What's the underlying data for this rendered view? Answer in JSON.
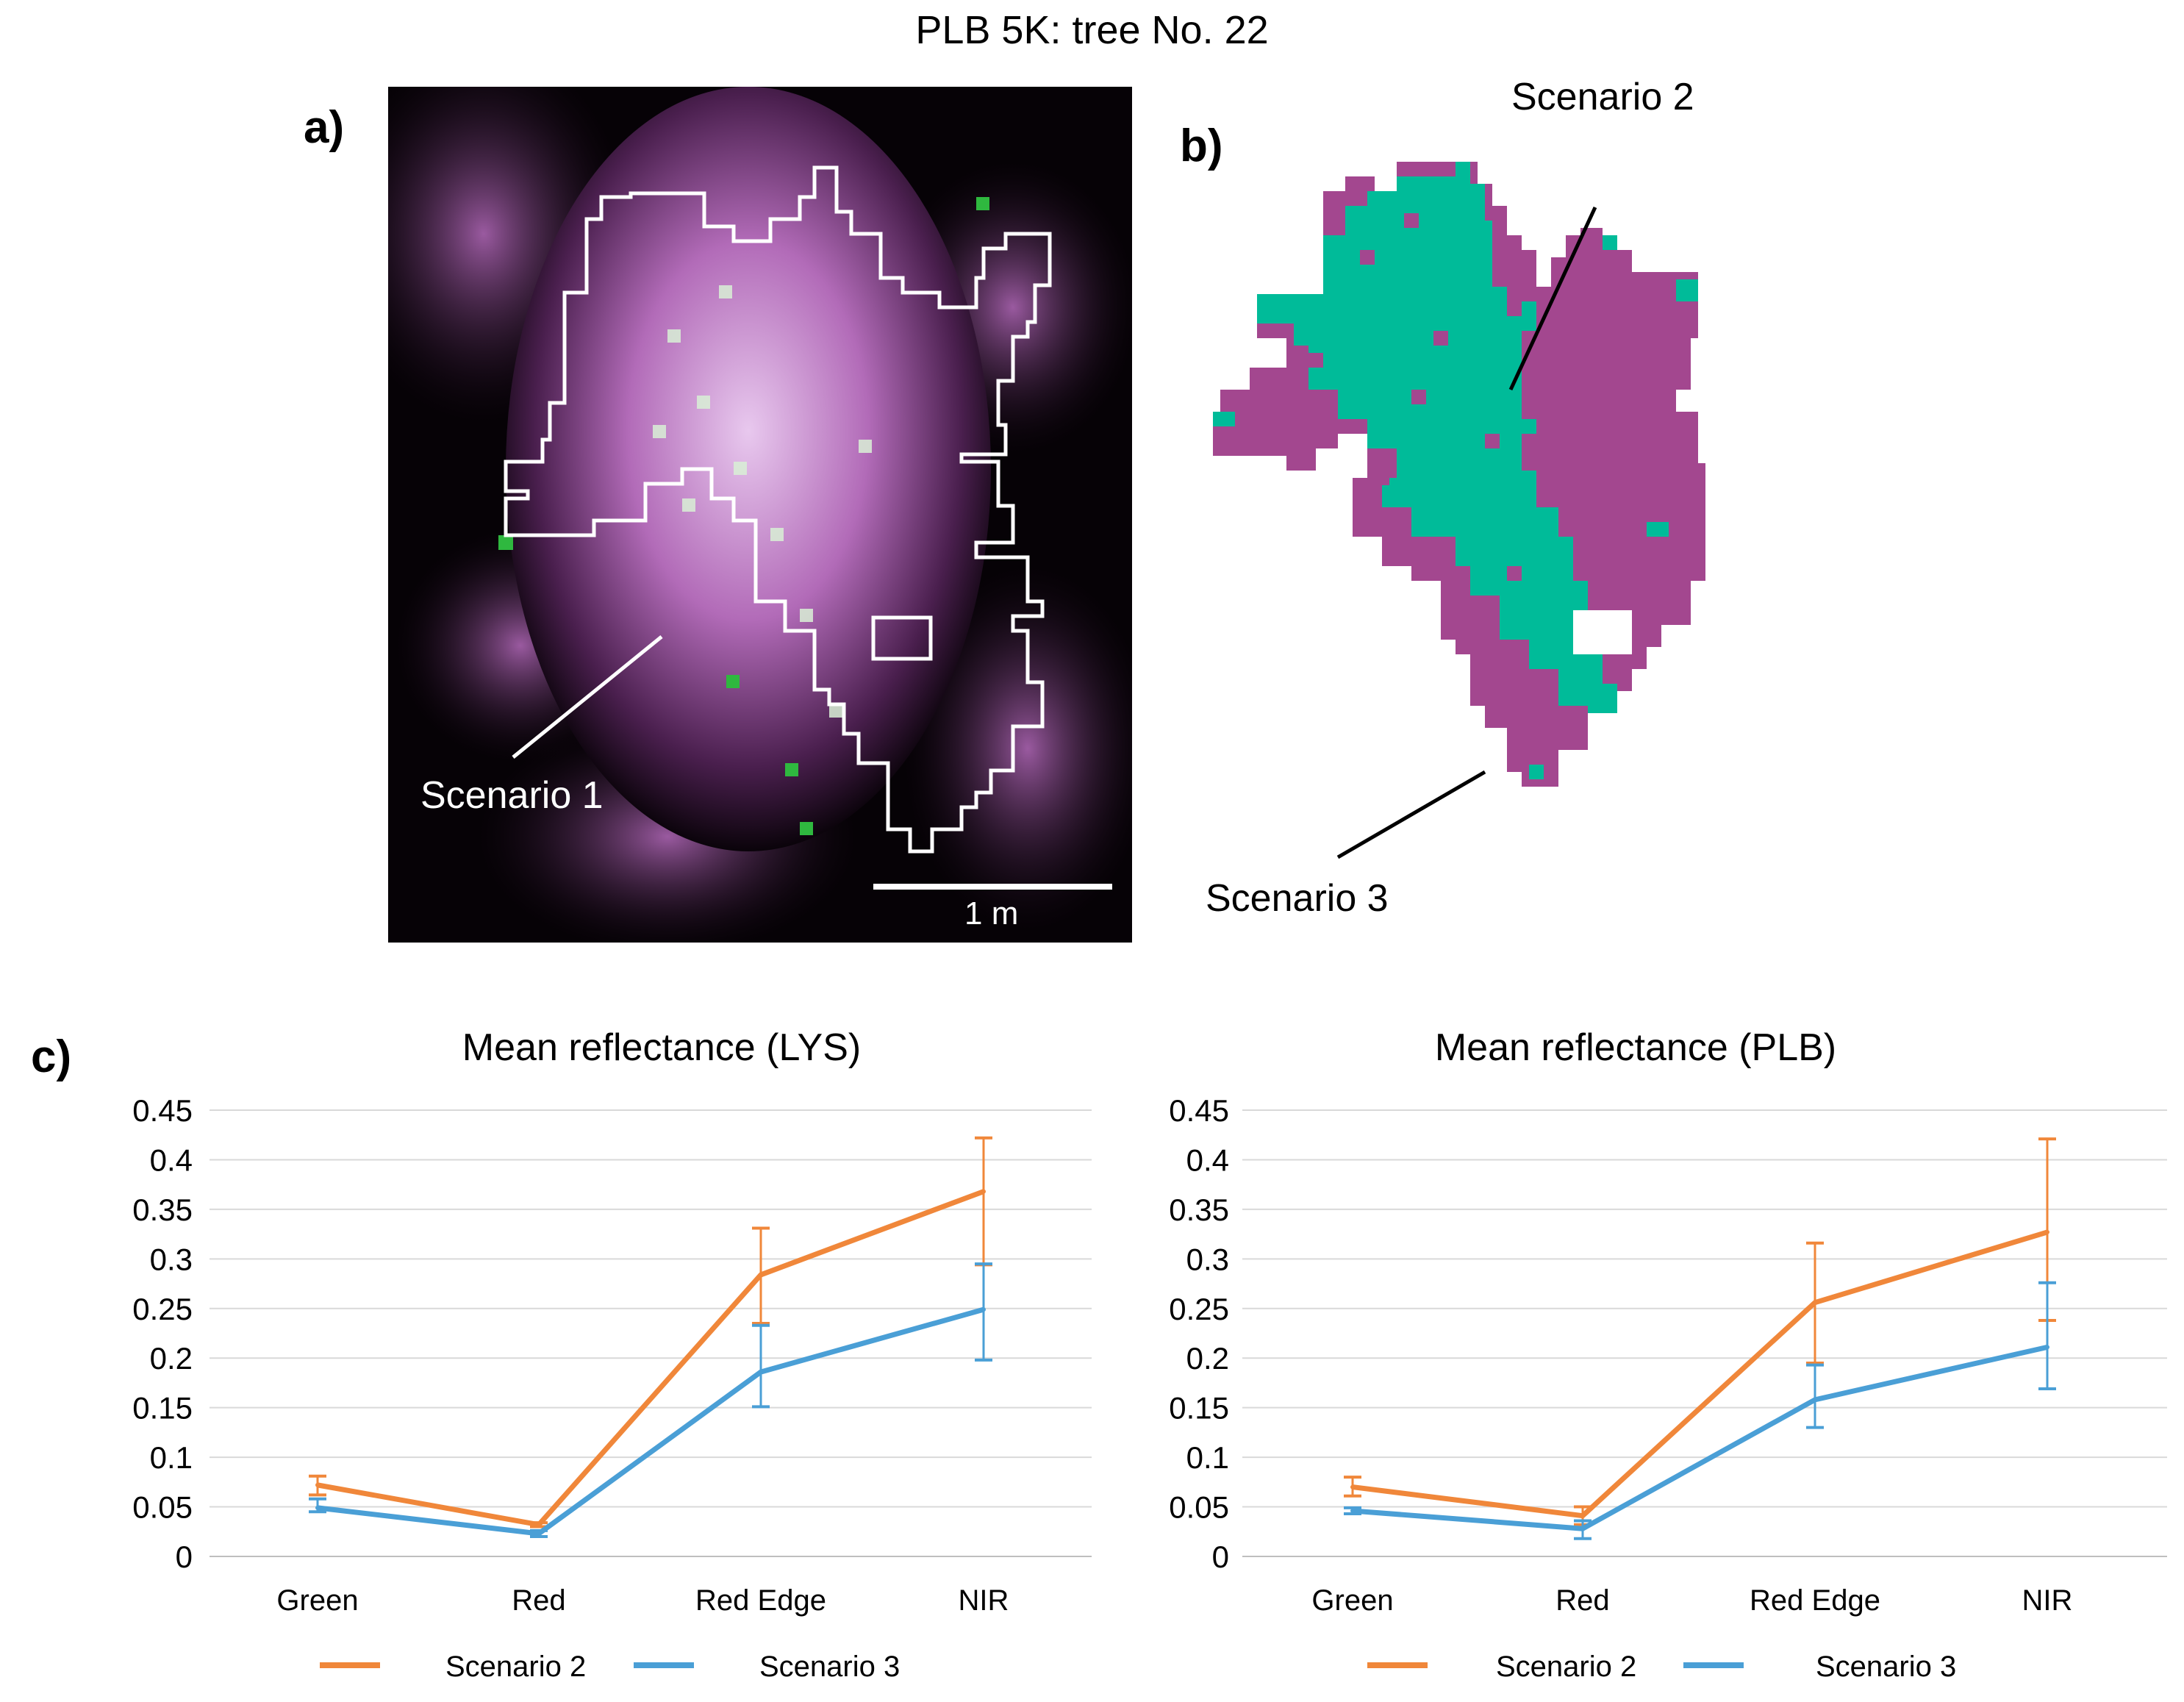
{
  "figure_title": "PLB 5K: tree No. 22",
  "panels": {
    "a_label": "a)",
    "b_label": "b)",
    "c_label": "c)"
  },
  "image_a": {
    "callout": "Scenario 1",
    "scale_bar_label": "1 m"
  },
  "image_b": {
    "callout_top": "Scenario 2",
    "callout_bottom": "Scenario 3",
    "colors": {
      "scenario2": "#00bb99",
      "scenario3": "#a3478f"
    }
  },
  "chart_data": [
    {
      "type": "line",
      "title": "Mean reflectance (LYS)",
      "categories": [
        "Green",
        "Red",
        "Red Edge",
        "NIR"
      ],
      "ylim": [
        0,
        0.45
      ],
      "yticks": [
        "0",
        "0.05",
        "0.1",
        "0.15",
        "0.2",
        "0.25",
        "0.3",
        "0.35",
        "0.4",
        "0.45"
      ],
      "grid": true,
      "legend": "bottom",
      "series": [
        {
          "name": "Scenario 2",
          "color": "#f0873a",
          "values": [
            0.072,
            0.032,
            0.284,
            0.368
          ],
          "err_upper": [
            0.081,
            0.034,
            0.331,
            0.422
          ],
          "err_lower": [
            0.062,
            0.03,
            0.235,
            0.294
          ]
        },
        {
          "name": "Scenario 3",
          "color": "#4a9fd6",
          "values": [
            0.049,
            0.023,
            0.186,
            0.249
          ],
          "err_upper": [
            0.058,
            0.026,
            0.233,
            0.295
          ],
          "err_lower": [
            0.045,
            0.02,
            0.151,
            0.198
          ]
        }
      ]
    },
    {
      "type": "line",
      "title": "Mean reflectance (PLB)",
      "categories": [
        "Green",
        "Red",
        "Red Edge",
        "NIR"
      ],
      "ylim": [
        0,
        0.45
      ],
      "yticks": [
        "0",
        "0.05",
        "0.1",
        "0.15",
        "0.2",
        "0.25",
        "0.3",
        "0.35",
        "0.4",
        "0.45"
      ],
      "grid": true,
      "legend": "bottom",
      "series": [
        {
          "name": "Scenario 2",
          "color": "#f0873a",
          "values": [
            0.07,
            0.041,
            0.256,
            0.327
          ],
          "err_upper": [
            0.08,
            0.05,
            0.316,
            0.421
          ],
          "err_lower": [
            0.061,
            0.032,
            0.195,
            0.238
          ]
        },
        {
          "name": "Scenario 3",
          "color": "#4a9fd6",
          "values": [
            0.046,
            0.028,
            0.158,
            0.211
          ],
          "err_upper": [
            0.049,
            0.036,
            0.193,
            0.276
          ],
          "err_lower": [
            0.043,
            0.018,
            0.13,
            0.169
          ]
        }
      ]
    }
  ]
}
